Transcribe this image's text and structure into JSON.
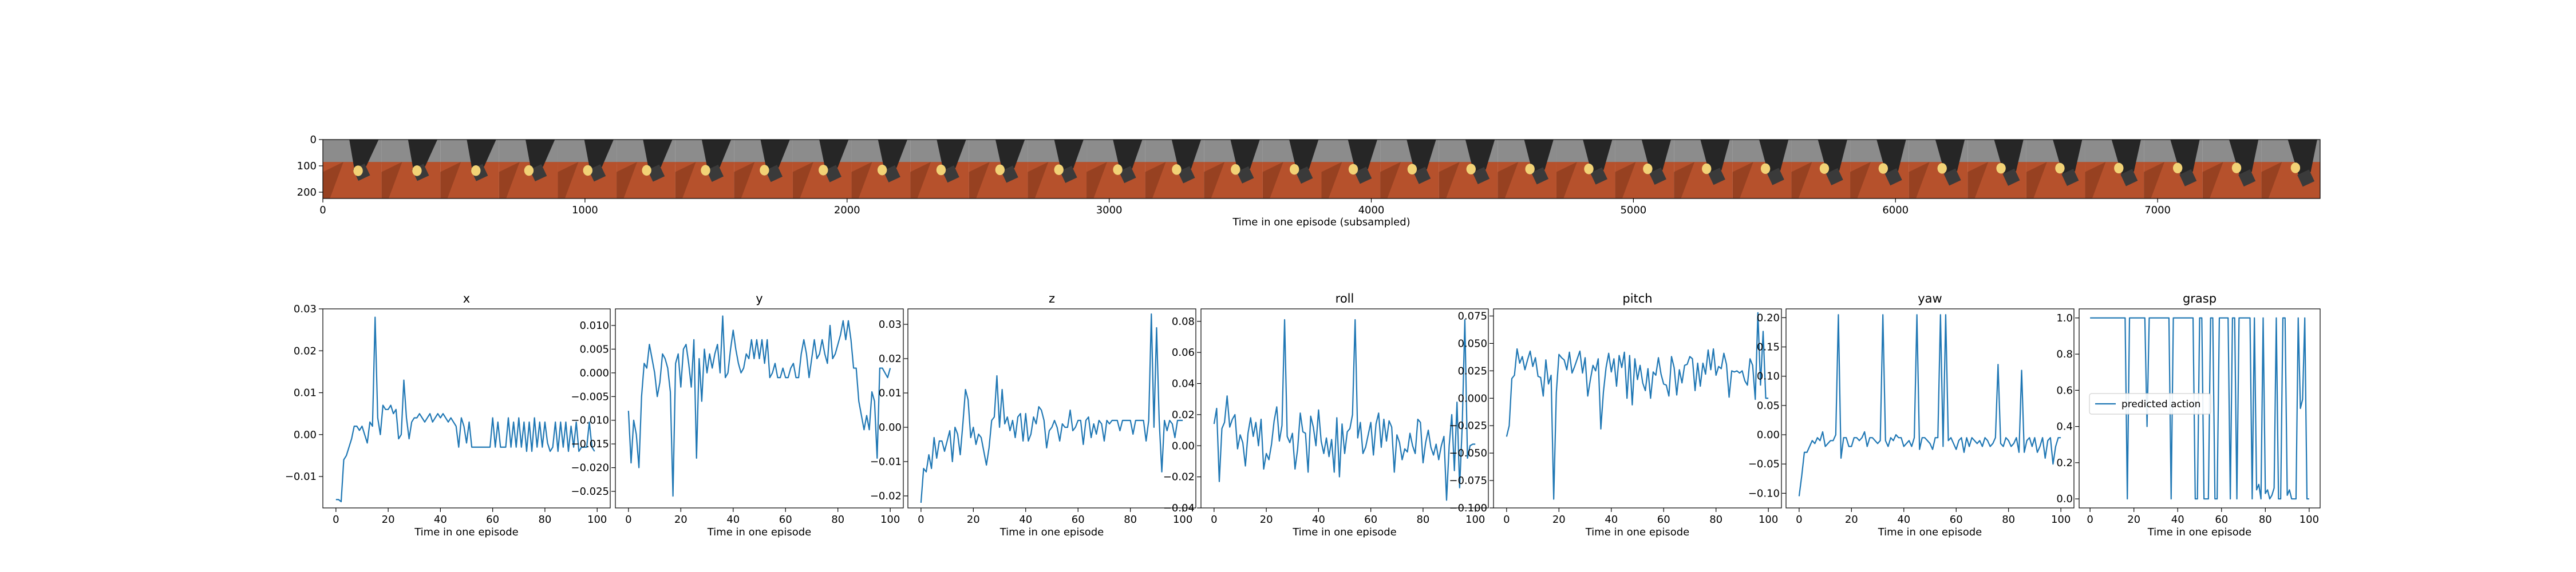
{
  "filmstrip": {
    "type": "image-strip",
    "xlabel": "Time in one episode (subsampled)",
    "xlim": [
      0,
      7620
    ],
    "ylim": [
      0,
      224
    ],
    "x_ticks": [
      0,
      1000,
      2000,
      3000,
      4000,
      5000,
      6000,
      7000
    ],
    "y_ticks": [
      0,
      100,
      200
    ],
    "frame_count": 34,
    "colors": {
      "sky": "#8c8c8c",
      "table": "#b6512c",
      "table_dark": "#7e3519",
      "arm": "#262626",
      "object": "#f2d276"
    }
  },
  "legend": {
    "label": "predicted action",
    "location": "center-left",
    "chart": "grasp"
  },
  "chart_data": [
    {
      "type": "line",
      "title": "x",
      "xlabel": "Time in one episode",
      "xlim": [
        -5,
        105
      ],
      "ylim": [
        -0.0175,
        0.03
      ],
      "x_ticks": [
        0,
        20,
        40,
        60,
        80,
        100
      ],
      "y_ticks": [
        -0.01,
        0.0,
        0.01,
        0.02,
        0.03
      ],
      "y_tick_labels": [
        "−0.01",
        "0.00",
        "0.01",
        "0.02",
        "0.03"
      ],
      "line_color": "#1f77b4",
      "values": [
        -0.0155,
        -0.0155,
        -0.016,
        -0.006,
        -0.005,
        -0.003,
        -0.001,
        0.002,
        0.002,
        0.001,
        0.002,
        0.0,
        -0.002,
        0.003,
        0.002,
        0.028,
        0.004,
        0.0,
        0.007,
        0.006,
        0.006,
        0.007,
        0.005,
        0.006,
        -0.001,
        0.0,
        0.013,
        0.004,
        -0.001,
        0.003,
        0.004,
        0.004,
        0.005,
        0.004,
        0.003,
        0.004,
        0.005,
        0.003,
        0.004,
        0.005,
        0.004,
        0.005,
        0.004,
        0.003,
        0.004,
        0.003,
        0.002,
        -0.003,
        0.004,
        0.002,
        -0.002,
        0.003,
        -0.003,
        -0.003,
        -0.003,
        -0.003,
        -0.003,
        -0.003,
        -0.003,
        -0.003,
        0.004,
        -0.003,
        0.003,
        -0.003,
        -0.003,
        -0.003,
        0.004,
        -0.003,
        0.003,
        -0.003,
        0.004,
        -0.003,
        0.003,
        -0.004,
        0.003,
        -0.004,
        0.004,
        -0.003,
        0.003,
        -0.003,
        0.003,
        -0.002,
        -0.004,
        -0.003,
        0.003,
        -0.004,
        0.003,
        -0.003,
        0.003,
        -0.004,
        0.002,
        -0.003,
        0.003,
        -0.004,
        -0.003,
        -0.003,
        -0.003,
        0.003,
        -0.003,
        -0.004
      ]
    },
    {
      "type": "line",
      "title": "y",
      "xlabel": "Time in one episode",
      "xlim": [
        -5,
        105
      ],
      "ylim": [
        -0.0285,
        0.0135
      ],
      "x_ticks": [
        0,
        20,
        40,
        60,
        80,
        100
      ],
      "y_ticks": [
        -0.025,
        -0.02,
        -0.015,
        -0.01,
        -0.005,
        0.0,
        0.005,
        0.01
      ],
      "y_tick_labels": [
        "−0.025",
        "−0.020",
        "−0.015",
        "−0.010",
        "−0.005",
        "0.000",
        "0.005",
        "0.010"
      ],
      "line_color": "#1f77b4",
      "values": [
        -0.008,
        -0.019,
        -0.01,
        -0.013,
        -0.02,
        -0.005,
        0.002,
        0.001,
        0.006,
        0.003,
        0.0,
        -0.005,
        -0.002,
        0.004,
        0.003,
        0.001,
        -0.004,
        -0.026,
        0.002,
        0.004,
        -0.003,
        0.005,
        0.006,
        0.002,
        -0.003,
        0.007,
        -0.018,
        0.003,
        -0.006,
        0.005,
        0.0,
        0.004,
        0.001,
        0.004,
        0.006,
        0.0,
        0.012,
        -0.001,
        0.0,
        0.005,
        0.009,
        0.005,
        0.002,
        0.0,
        0.001,
        0.004,
        0.003,
        0.007,
        0.003,
        0.007,
        0.003,
        0.007,
        0.002,
        0.007,
        -0.001,
        0.0,
        0.002,
        -0.001,
        -0.001,
        0.001,
        -0.001,
        -0.001,
        0.001,
        0.002,
        -0.001,
        -0.001,
        0.004,
        0.007,
        0.004,
        -0.001,
        0.003,
        0.007,
        0.003,
        0.004,
        0.007,
        0.004,
        0.002,
        0.01,
        0.003,
        0.004,
        0.006,
        0.008,
        0.011,
        0.007,
        0.011,
        0.007,
        0.001,
        0.001,
        -0.006,
        -0.009,
        -0.012,
        -0.009,
        -0.012,
        -0.004,
        -0.006,
        -0.018,
        0.001,
        0.001,
        0.0,
        -0.001,
        0.001
      ]
    },
    {
      "type": "line",
      "title": "z",
      "xlabel": "Time in one episode",
      "xlim": [
        -5,
        105
      ],
      "ylim": [
        -0.0235,
        0.0345
      ],
      "x_ticks": [
        0,
        20,
        40,
        60,
        80,
        100
      ],
      "y_ticks": [
        -0.02,
        -0.01,
        0.0,
        0.01,
        0.02,
        0.03
      ],
      "y_tick_labels": [
        "−0.02",
        "−0.01",
        "0.00",
        "0.01",
        "0.02",
        "0.03"
      ],
      "line_color": "#1f77b4",
      "values": [
        -0.022,
        -0.012,
        -0.013,
        -0.008,
        -0.012,
        -0.003,
        -0.009,
        -0.004,
        -0.004,
        -0.007,
        -0.004,
        -0.001,
        -0.01,
        0.0,
        -0.002,
        -0.008,
        0.001,
        0.011,
        0.008,
        -0.003,
        0.0,
        -0.005,
        -0.002,
        -0.003,
        -0.007,
        -0.011,
        -0.006,
        0.002,
        0.003,
        0.015,
        0.0,
        0.011,
        0.001,
        0.003,
        -0.001,
        0.002,
        -0.003,
        0.003,
        0.004,
        -0.004,
        0.004,
        -0.004,
        -0.002,
        0.003,
        0.001,
        0.006,
        0.005,
        0.002,
        -0.006,
        -0.001,
        0.0,
        0.002,
        0.0,
        -0.004,
        0.001,
        0.0,
        0.0,
        0.005,
        -0.001,
        0.0,
        0.002,
        0.002,
        -0.005,
        0.002,
        0.003,
        -0.003,
        0.001,
        -0.002,
        0.002,
        0.001,
        -0.004,
        0.002,
        0.001,
        0.002,
        0.002,
        0.002,
        -0.001,
        0.002,
        0.002,
        0.002,
        0.002,
        -0.002,
        0.002,
        0.002,
        0.002,
        0.002,
        -0.004,
        0.002,
        0.033,
        0.0,
        0.029,
        0.002,
        -0.013,
        0.002,
        -0.001,
        0.002,
        0.001,
        -0.003,
        0.002,
        0.002,
        0.002
      ]
    },
    {
      "type": "line",
      "title": "roll",
      "xlabel": "Time in one episode",
      "xlim": [
        -5,
        105
      ],
      "ylim": [
        -0.04,
        0.088
      ],
      "x_ticks": [
        0,
        20,
        40,
        60,
        80,
        100
      ],
      "y_ticks": [
        -0.04,
        -0.02,
        0.0,
        0.02,
        0.04,
        0.06,
        0.08
      ],
      "y_tick_labels": [
        "−0.04",
        "−0.02",
        "0.00",
        "0.02",
        "0.04",
        "0.06",
        "0.08"
      ],
      "line_color": "#1f77b4",
      "values": [
        0.014,
        0.024,
        -0.023,
        0.011,
        0.015,
        0.032,
        0.012,
        0.017,
        0.02,
        -0.002,
        0.007,
        0.002,
        -0.013,
        0.008,
        0.018,
        0.006,
        0.015,
        0.0,
        0.017,
        -0.015,
        -0.005,
        -0.009,
        0.001,
        0.016,
        0.025,
        0.003,
        0.013,
        0.081,
        0.006,
        0.002,
        0.008,
        -0.015,
        -0.002,
        0.021,
        0.009,
        0.008,
        -0.017,
        0.019,
        0.012,
        0.0,
        0.023,
        0.003,
        -0.005,
        0.005,
        -0.007,
        0.004,
        -0.017,
        0.018,
        -0.02,
        0.014,
        -0.005,
        0.009,
        0.011,
        0.02,
        0.081,
        0.005,
        0.015,
        -0.005,
        -0.001,
        0.007,
        0.015,
        -0.006,
        0.014,
        0.021,
        -0.001,
        0.017,
        0.003,
        0.016,
        0.012,
        -0.017,
        0.007,
        0.002,
        -0.009,
        -0.002,
        -0.004,
        0.008,
        0.0,
        -0.005,
        0.017,
        0.015,
        -0.011,
        0.002,
        0.01,
        -0.001,
        -0.006,
        0.001,
        -0.009,
        0.0,
        0.006,
        -0.035,
        0.0,
        0.02,
        -0.016,
        0.028,
        -0.027,
        0.013,
        0.081,
        -0.008,
        0.0,
        0.001,
        0.001
      ]
    },
    {
      "type": "line",
      "title": "pitch",
      "xlabel": "Time in one episode",
      "xlim": [
        -5,
        105
      ],
      "ylim": [
        -0.1,
        0.0815
      ],
      "x_ticks": [
        0,
        20,
        40,
        60,
        80,
        100
      ],
      "y_ticks": [
        -0.1,
        -0.075,
        -0.05,
        -0.025,
        0.0,
        0.025,
        0.05,
        0.075
      ],
      "y_tick_labels": [
        "−0.100",
        "−0.075",
        "−0.050",
        "−0.025",
        "0.000",
        "0.025",
        "0.050",
        "0.075"
      ],
      "line_color": "#1f77b4",
      "values": [
        -0.035,
        -0.025,
        0.018,
        0.021,
        0.045,
        0.032,
        0.038,
        0.026,
        0.035,
        0.043,
        0.029,
        0.037,
        0.02,
        0.019,
        0.002,
        0.035,
        0.013,
        0.021,
        -0.092,
        0.005,
        0.04,
        0.037,
        0.035,
        0.026,
        0.042,
        0.023,
        0.029,
        0.036,
        0.043,
        0.023,
        0.037,
        0.002,
        0.017,
        0.03,
        0.025,
        0.036,
        -0.028,
        0.006,
        0.028,
        0.041,
        0.024,
        0.036,
        0.011,
        0.039,
        0.028,
        0.042,
        0.0,
        0.039,
        -0.006,
        0.036,
        0.017,
        0.03,
        0.014,
        0.007,
        0.027,
        0.0,
        0.024,
        0.021,
        0.037,
        0.022,
        0.013,
        0.012,
        0.002,
        0.038,
        0.028,
        0.003,
        0.026,
        0.014,
        0.03,
        0.031,
        0.038,
        0.036,
        0.007,
        0.032,
        0.011,
        0.032,
        0.022,
        0.044,
        0.026,
        0.045,
        0.021,
        0.029,
        0.027,
        0.041,
        0.031,
        0.001,
        0.025,
        0.024,
        0.025,
        0.023,
        0.025,
        0.016,
        0.012,
        0.036,
        0.03,
        -0.001,
        0.078,
        0.012,
        0.061,
        0.0,
        0.0
      ]
    },
    {
      "type": "line",
      "title": "yaw",
      "xlabel": "Time in one episode",
      "xlim": [
        -5,
        105
      ],
      "ylim": [
        -0.125,
        0.215
      ],
      "x_ticks": [
        0,
        20,
        40,
        60,
        80,
        100
      ],
      "y_ticks": [
        -0.1,
        -0.05,
        0.0,
        0.05,
        0.1,
        0.15,
        0.2
      ],
      "y_tick_labels": [
        "−0.10",
        "−0.05",
        "0.00",
        "0.05",
        "0.10",
        "0.15",
        "0.20"
      ],
      "line_color": "#1f77b4",
      "values": [
        -0.105,
        -0.07,
        -0.03,
        -0.03,
        -0.02,
        -0.01,
        -0.015,
        -0.005,
        -0.01,
        0.005,
        -0.02,
        -0.015,
        -0.01,
        -0.01,
        0.0,
        0.205,
        -0.04,
        -0.005,
        -0.005,
        -0.02,
        -0.02,
        -0.005,
        -0.005,
        -0.01,
        -0.005,
        0.005,
        -0.02,
        -0.005,
        -0.005,
        -0.01,
        -0.015,
        -0.01,
        0.205,
        -0.01,
        -0.02,
        -0.005,
        -0.01,
        0.0,
        -0.005,
        -0.005,
        -0.02,
        -0.015,
        -0.01,
        -0.02,
        -0.005,
        0.205,
        -0.025,
        -0.005,
        -0.005,
        -0.01,
        -0.015,
        -0.025,
        -0.005,
        -0.005,
        0.205,
        -0.02,
        0.205,
        -0.01,
        -0.005,
        -0.015,
        -0.025,
        -0.01,
        -0.005,
        -0.03,
        -0.005,
        -0.02,
        -0.005,
        -0.01,
        -0.015,
        -0.01,
        -0.02,
        -0.005,
        -0.01,
        -0.02,
        -0.015,
        -0.005,
        0.12,
        -0.015,
        -0.02,
        -0.005,
        -0.01,
        -0.02,
        -0.015,
        -0.005,
        -0.03,
        0.11,
        -0.03,
        -0.01,
        -0.005,
        -0.02,
        -0.005,
        -0.03,
        -0.02,
        -0.005,
        -0.04,
        -0.01,
        -0.005,
        -0.05,
        -0.02,
        -0.005,
        -0.005
      ]
    },
    {
      "type": "line",
      "title": "grasp",
      "xlabel": "Time in one episode",
      "xlim": [
        -5,
        105
      ],
      "ylim": [
        -0.05,
        1.05
      ],
      "x_ticks": [
        0,
        20,
        40,
        60,
        80,
        100
      ],
      "y_ticks": [
        0.0,
        0.2,
        0.4,
        0.6,
        0.8,
        1.0
      ],
      "y_tick_labels": [
        "0.0",
        "0.2",
        "0.4",
        "0.6",
        "0.8",
        "1.0"
      ],
      "line_color": "#1f77b4",
      "series": [
        {
          "name": "predicted action"
        }
      ],
      "values": [
        1,
        1,
        1,
        1,
        1,
        1,
        1,
        1,
        1,
        1,
        1,
        1,
        1,
        1,
        1,
        1,
        1,
        0,
        1,
        1,
        1,
        1,
        1,
        1,
        1,
        1,
        0.4,
        1,
        1,
        1,
        1,
        1,
        1,
        1,
        1,
        1,
        1,
        0,
        1,
        1,
        1,
        1,
        1,
        1,
        1,
        1,
        1,
        1,
        0,
        0,
        1,
        1,
        0,
        0,
        0,
        1,
        1,
        0,
        0,
        1,
        1,
        1,
        1,
        1,
        0,
        1,
        1,
        0,
        1,
        1,
        1,
        1,
        1,
        1,
        0,
        1,
        0.05,
        0.08,
        0,
        1,
        0.03,
        0.05,
        0,
        0.02,
        0.06,
        1,
        0,
        0,
        1,
        1,
        0.02,
        0.05,
        0,
        0,
        0,
        1,
        0.5,
        0.55,
        1,
        0,
        0
      ]
    }
  ]
}
